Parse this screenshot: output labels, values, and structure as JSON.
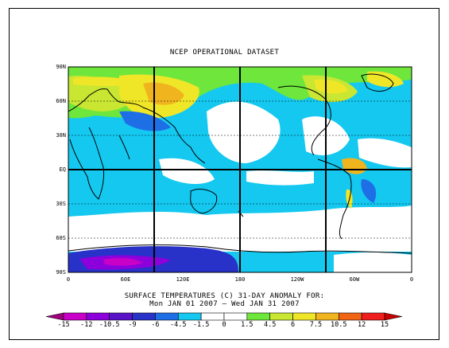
{
  "map": {
    "title": "NCEP OPERATIONAL DATASET",
    "caption_line1": "SURFACE TEMPERATURES (C)  31-DAY ANOMALY FOR:",
    "caption_line2": "Mon JAN 01 2007 — Wed JAN 31 2007",
    "latitude_labels": [
      "90N",
      "60N",
      "30N",
      "EQ",
      "30S",
      "60S",
      "90S"
    ],
    "longitude_labels": [
      "0",
      "60E",
      "120E",
      "180",
      "120W",
      "60W",
      "0"
    ],
    "colorbar_labels": [
      "-15",
      "-12",
      "-10.5",
      "-9",
      "-6",
      "-4.5",
      "-1.5",
      "0",
      "1.5",
      "4.5",
      "6",
      "7.5",
      "10.5",
      "12",
      "15"
    ],
    "colorbar_colors": [
      "#a0007c",
      "#c800c8",
      "#8c00dc",
      "#5a14c8",
      "#2832c8",
      "#1e6ee6",
      "#14c8f0",
      "#ffffff",
      "#ffffff",
      "#6ee63c",
      "#c8e632",
      "#f0e628",
      "#f0b41e",
      "#f06414",
      "#f01e1e",
      "#c80000"
    ]
  }
}
